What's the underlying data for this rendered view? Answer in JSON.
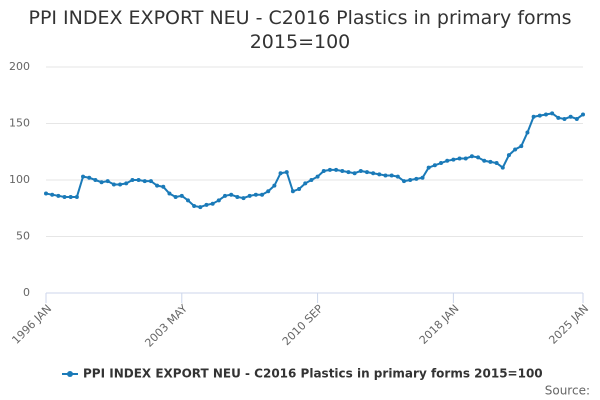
{
  "chart_data": {
    "type": "line",
    "title": "PPI INDEX EXPORT NEU - C2016 Plastics in primary forms 2015=100",
    "categories": [
      "1996 JAN",
      null,
      null,
      null,
      null,
      null,
      null,
      null,
      null,
      null,
      null,
      null,
      null,
      null,
      null,
      null,
      null,
      null,
      null,
      null,
      null,
      null,
      "2003 MAY",
      null,
      null,
      null,
      null,
      null,
      null,
      null,
      null,
      null,
      null,
      null,
      null,
      null,
      null,
      null,
      null,
      null,
      null,
      null,
      null,
      null,
      "2010 SEP",
      null,
      null,
      null,
      null,
      null,
      null,
      null,
      null,
      null,
      null,
      null,
      null,
      null,
      null,
      null,
      null,
      null,
      null,
      null,
      null,
      null,
      "2018 JAN",
      null,
      null,
      null,
      null,
      null,
      null,
      null,
      null,
      null,
      null,
      null,
      null,
      null,
      null,
      null,
      null,
      null,
      null,
      null,
      null,
      "2025 JAN"
    ],
    "series": [
      {
        "name": "PPI INDEX EXPORT NEU - C2016 Plastics in primary forms 2015=100",
        "color": "#1a7ab8",
        "values": [
          88,
          87,
          86,
          85,
          85,
          85,
          103,
          102,
          100,
          98,
          99,
          96,
          96,
          97,
          100,
          100,
          99,
          99,
          95,
          94,
          88,
          85,
          86,
          82,
          77,
          76,
          78,
          79,
          82,
          86,
          87,
          85,
          84,
          86,
          87,
          87,
          90,
          95,
          106,
          107,
          90,
          92,
          97,
          100,
          103,
          108,
          109,
          109,
          108,
          107,
          106,
          108,
          107,
          106,
          105,
          104,
          104,
          103,
          99,
          100,
          101,
          102,
          111,
          113,
          115,
          117,
          118,
          119,
          119,
          121,
          120,
          117,
          116,
          115,
          111,
          122,
          127,
          130,
          142,
          156,
          157,
          158,
          159,
          155,
          154,
          156,
          154,
          158
        ]
      }
    ],
    "ylim": [
      0,
      200
    ],
    "yticks": [
      0,
      50,
      100,
      150,
      200
    ],
    "grid": true,
    "source": "Source:"
  }
}
